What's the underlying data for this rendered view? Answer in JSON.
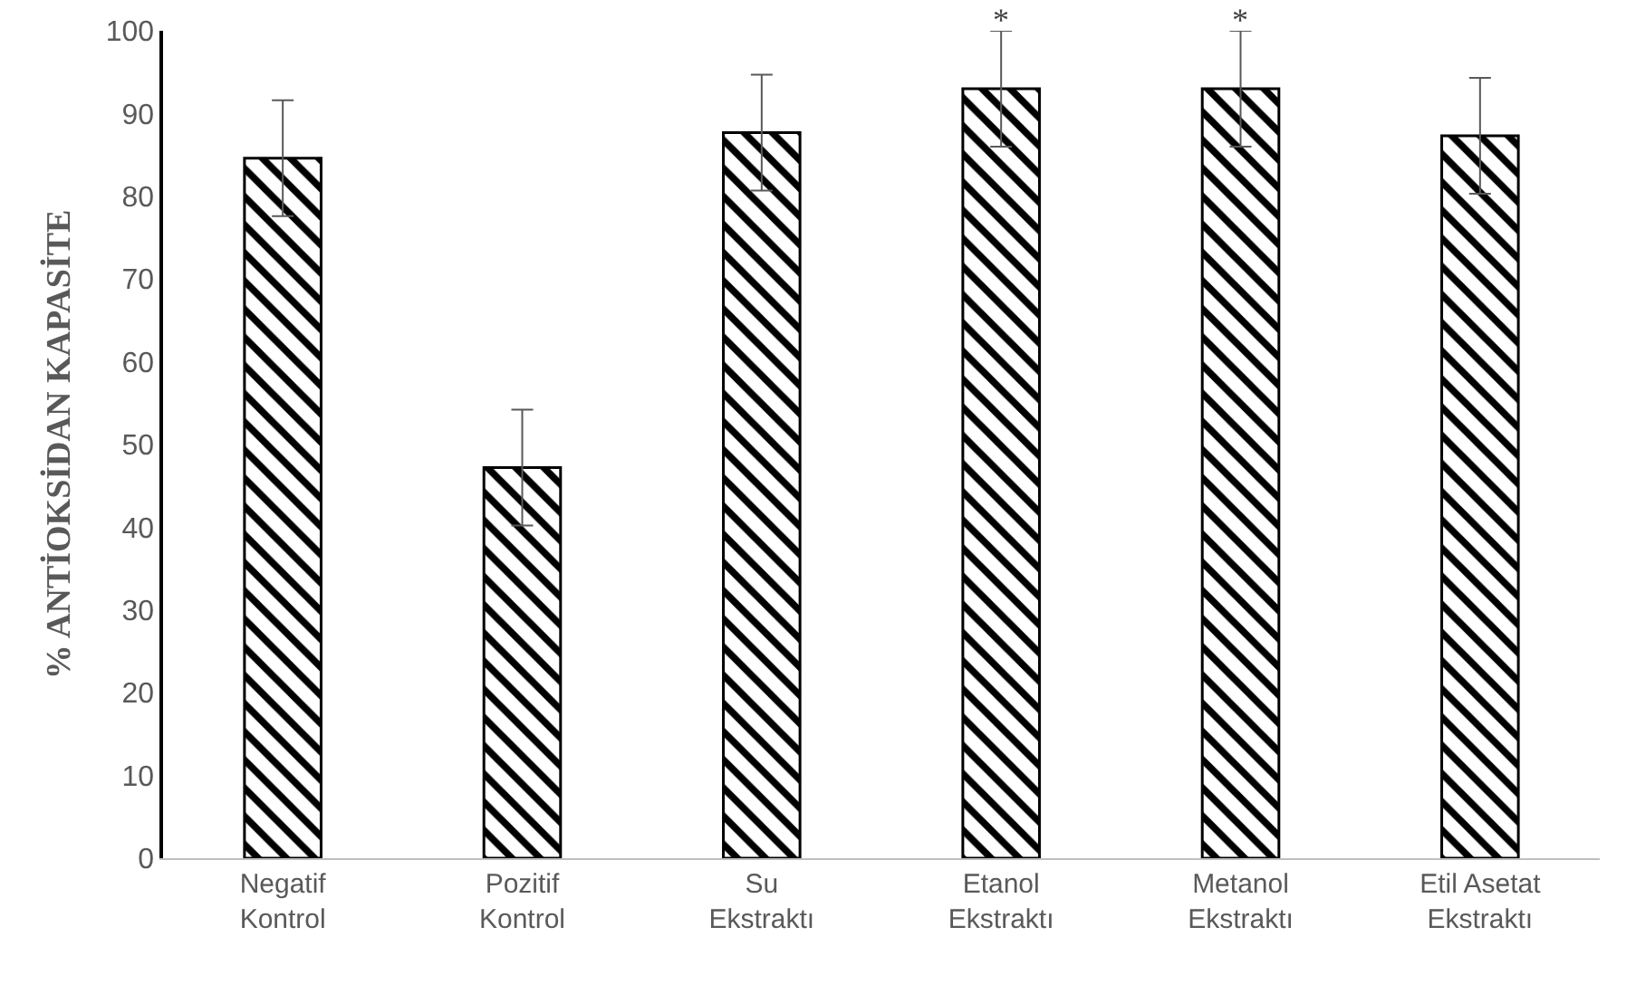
{
  "chart_data": {
    "type": "bar",
    "ylabel": "% ANTİOKSİDAN KAPASİTE",
    "categories": [
      "Negatif\nKontrol",
      "Pozitif\nKontrol",
      "Su\nEkstraktı",
      "Etanol\nEkstraktı",
      "Metanol\nEkstraktı",
      "Etil Asetat\nEkstraktı"
    ],
    "values": [
      84.6,
      47.2,
      87.7,
      93.0,
      93.0,
      87.3
    ],
    "errors": [
      7,
      7,
      7,
      7,
      7,
      7
    ],
    "color": "#000000",
    "ylim": [
      0,
      100
    ],
    "yticks": [
      0,
      10,
      20,
      30,
      40,
      50,
      60,
      70,
      80,
      90,
      100
    ],
    "grid": false,
    "annotations": [
      {
        "text": "*",
        "x": "Etanol\nEkstraktı",
        "y": 100
      },
      {
        "text": "*",
        "x": "Metanol\nEkstraktı",
        "y": 100
      }
    ]
  }
}
